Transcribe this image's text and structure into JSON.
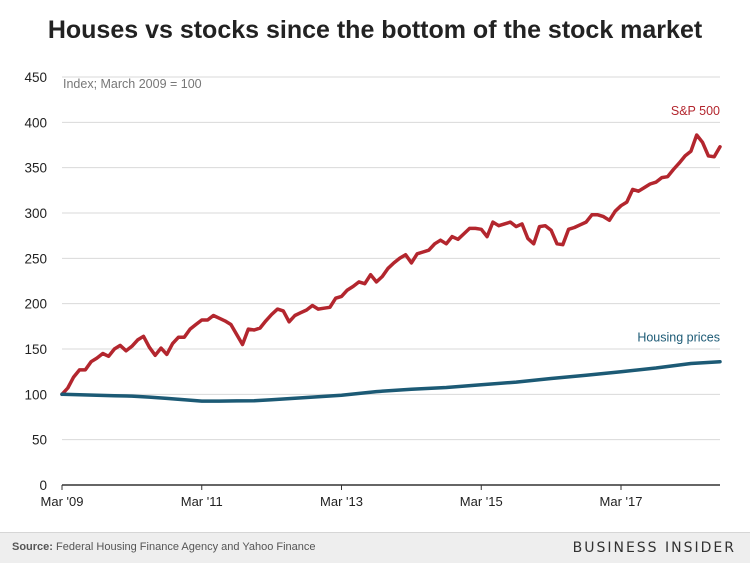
{
  "title": "Houses vs stocks since the bottom of the stock market",
  "footer": {
    "source_label": "Source:",
    "source_text": "Federal Housing Finance Agency and Yahoo Finance",
    "brand": "BUSINESS INSIDER"
  },
  "colors": {
    "sp500": "#b3262e",
    "housing": "#1c5a75",
    "axis": "#333333",
    "grid": "#d9d9d9",
    "text": "#222222",
    "note": "#777777"
  },
  "chart_data": {
    "type": "line",
    "title": "Houses vs stocks since the bottom of the stock market",
    "note": "Index; March 2009 = 100",
    "xlabel": "",
    "ylabel": "",
    "ylim": [
      0,
      450
    ],
    "yticks": [
      0,
      50,
      100,
      150,
      200,
      250,
      300,
      350,
      400,
      450
    ],
    "xlim": [
      0,
      113
    ],
    "xticks": [
      {
        "pos": 0,
        "label": "Mar '09"
      },
      {
        "pos": 24,
        "label": "Mar '11"
      },
      {
        "pos": 48,
        "label": "Mar '13"
      },
      {
        "pos": 72,
        "label": "Mar '15"
      },
      {
        "pos": 96,
        "label": "Mar '17"
      }
    ],
    "grid": true,
    "x_unit": "months since March 2009",
    "series": [
      {
        "name": "S&P 500",
        "label": "S&P 500",
        "color": "#b3262e",
        "x": [
          0,
          1,
          2,
          3,
          4,
          5,
          6,
          7,
          8,
          9,
          10,
          11,
          12,
          13,
          14,
          15,
          16,
          17,
          18,
          19,
          20,
          21,
          22,
          23,
          24,
          25,
          26,
          27,
          28,
          29,
          30,
          31,
          32,
          33,
          34,
          35,
          36,
          37,
          38,
          39,
          40,
          41,
          42,
          43,
          44,
          45,
          46,
          47,
          48,
          49,
          50,
          51,
          52,
          53,
          54,
          55,
          56,
          57,
          58,
          59,
          60,
          61,
          62,
          63,
          64,
          65,
          66,
          67,
          68,
          69,
          70,
          71,
          72,
          73,
          74,
          75,
          76,
          77,
          78,
          79,
          80,
          81,
          82,
          83,
          84,
          85,
          86,
          87,
          88,
          89,
          90,
          91,
          92,
          93,
          94,
          95,
          96,
          97,
          98,
          99,
          100,
          101,
          102,
          103,
          104,
          105,
          106,
          107,
          108,
          109,
          110,
          111,
          112,
          113
        ],
        "values": [
          100,
          107,
          119,
          127,
          127,
          136,
          140,
          145,
          142,
          150,
          154,
          148,
          153,
          160,
          164,
          152,
          143,
          151,
          144,
          156,
          163,
          163,
          172,
          177,
          182,
          182,
          187,
          184,
          181,
          177,
          166,
          155,
          172,
          171,
          173,
          181,
          188,
          194,
          192,
          180,
          187,
          190,
          193,
          198,
          194,
          195,
          196,
          206,
          208,
          215,
          219,
          224,
          222,
          232,
          224,
          230,
          239,
          245,
          250,
          254,
          245,
          255,
          257,
          259,
          266,
          270,
          266,
          274,
          271,
          277,
          283,
          283,
          282,
          274,
          290,
          286,
          288,
          290,
          285,
          288,
          272,
          266,
          285,
          286,
          281,
          266,
          265,
          282,
          284,
          287,
          290,
          298,
          298,
          296,
          292,
          302,
          308,
          312,
          326,
          324,
          328,
          332,
          334,
          339,
          340,
          348,
          355,
          363,
          368,
          386,
          378,
          363,
          362,
          373
        ]
      },
      {
        "name": "Housing prices",
        "label": "Housing prices",
        "color": "#1c5a75",
        "x": [
          0,
          3,
          6,
          9,
          12,
          15,
          18,
          21,
          24,
          27,
          30,
          33,
          36,
          42,
          48,
          54,
          60,
          66,
          72,
          78,
          84,
          90,
          96,
          102,
          108,
          113
        ],
        "values": [
          100,
          99.5,
          99,
          98.5,
          98,
          97,
          95.5,
          94,
          92.5,
          92.5,
          92.8,
          93,
          94,
          96.5,
          99,
          103,
          105.5,
          107.5,
          110.5,
          113.5,
          117.5,
          121,
          125,
          129,
          134,
          136
        ]
      }
    ]
  }
}
